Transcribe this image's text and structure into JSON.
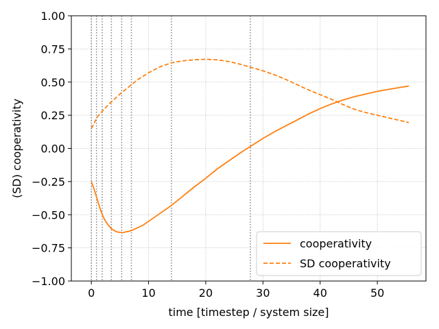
{
  "chart_data": {
    "type": "line",
    "xlabel": "time [timestep / system size]",
    "ylabel": "(SD) cooperativity",
    "xlim": [
      -3.5,
      58.5
    ],
    "ylim": [
      -1.0,
      1.0
    ],
    "x_ticks": [
      0,
      10,
      20,
      30,
      40,
      50
    ],
    "y_ticks": [
      -1.0,
      -0.75,
      -0.5,
      -0.25,
      0.0,
      0.25,
      0.5,
      0.75,
      1.0
    ],
    "x_tick_labels": [
      "0",
      "10",
      "20",
      "30",
      "40",
      "50"
    ],
    "y_tick_labels": [
      "−1.00",
      "−0.75",
      "−0.50",
      "−0.25",
      "0.00",
      "0.25",
      "0.50",
      "0.75",
      "1.00"
    ],
    "grid": true,
    "legend_position": "lower right",
    "vertical_markers": [
      0,
      0.9,
      1.9,
      3.5,
      5.3,
      7.0,
      14.0,
      27.8
    ],
    "color": "#ff7f0e",
    "series": [
      {
        "name": "cooperativity",
        "style": "solid",
        "x": [
          0,
          0.5,
          1,
          1.5,
          2,
          2.5,
          3,
          3.5,
          4,
          4.5,
          5,
          5.5,
          6,
          7,
          8,
          9,
          10,
          12,
          14,
          16,
          18,
          20,
          22,
          24,
          26,
          28,
          30,
          32,
          34,
          36,
          38,
          40,
          42,
          44,
          46,
          48,
          50,
          52,
          54,
          55.5
        ],
        "y": [
          -0.25,
          -0.31,
          -0.38,
          -0.45,
          -0.51,
          -0.55,
          -0.58,
          -0.605,
          -0.62,
          -0.63,
          -0.633,
          -0.635,
          -0.63,
          -0.62,
          -0.6,
          -0.58,
          -0.55,
          -0.49,
          -0.43,
          -0.36,
          -0.29,
          -0.225,
          -0.155,
          -0.095,
          -0.035,
          0.02,
          0.075,
          0.125,
          0.17,
          0.215,
          0.26,
          0.3,
          0.335,
          0.365,
          0.39,
          0.41,
          0.43,
          0.445,
          0.46,
          0.47
        ]
      },
      {
        "name": "SD cooperativity",
        "style": "dashed",
        "x": [
          0,
          0.5,
          1,
          2,
          3,
          4,
          5,
          6,
          7,
          8,
          10,
          12,
          14,
          16,
          18,
          20,
          22,
          24,
          26,
          28,
          30,
          32,
          34,
          36,
          38,
          40,
          42,
          44,
          46,
          48,
          50,
          52,
          54,
          55.5
        ],
        "y": [
          0.15,
          0.19,
          0.235,
          0.285,
          0.33,
          0.37,
          0.41,
          0.445,
          0.48,
          0.515,
          0.57,
          0.615,
          0.645,
          0.66,
          0.668,
          0.672,
          0.668,
          0.655,
          0.635,
          0.61,
          0.585,
          0.555,
          0.52,
          0.48,
          0.44,
          0.405,
          0.37,
          0.33,
          0.295,
          0.27,
          0.25,
          0.23,
          0.21,
          0.195
        ]
      }
    ]
  }
}
